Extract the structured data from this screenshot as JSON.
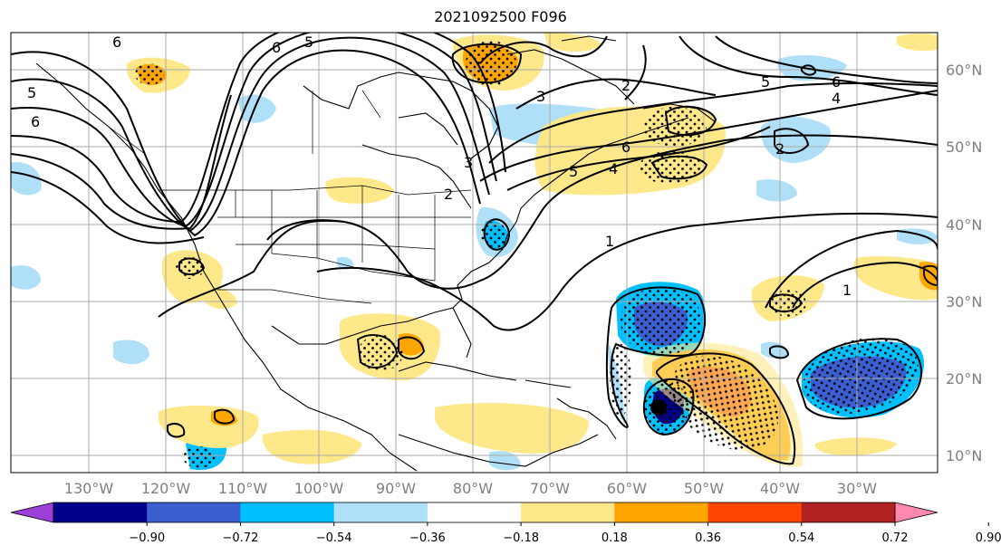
{
  "title": "2021092500 F096",
  "x_ticks": [
    "130°W",
    "120°W",
    "110°W",
    "100°W",
    "90°W",
    "80°W",
    "70°W",
    "60°W",
    "50°W",
    "40°W",
    "30°W"
  ],
  "y_ticks": [
    "60°N",
    "50°N",
    "40°N",
    "30°N",
    "20°N",
    "10°N"
  ],
  "colorbar": {
    "colors": [
      "#9b3fd6",
      "#00008b",
      "#3b5fd0",
      "#00bfff",
      "#b0e0f8",
      "#ffffff",
      "#ffe88a",
      "#ffa500",
      "#ff4500",
      "#b22222",
      "#ff88b0"
    ],
    "labels": [
      "−0.90",
      "−0.72",
      "−0.54",
      "−0.36",
      "−0.18",
      "0.18",
      "0.36",
      "0.54",
      "0.72",
      "0.90"
    ],
    "extend_low_color": "#9b3fd6",
    "extend_high_color": "#ff88b0"
  },
  "contour_labels": [
    "6",
    "6",
    "5",
    "5",
    "6",
    "3",
    "2",
    "3",
    "2",
    "5",
    "6",
    "4",
    "6",
    "5",
    "4",
    "2",
    "1",
    "1"
  ],
  "colors": {
    "grid": "#aaaaaa",
    "land_line": "#000000",
    "frame": "#000000"
  }
}
